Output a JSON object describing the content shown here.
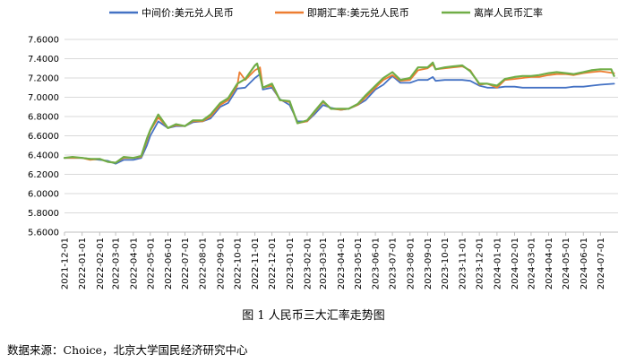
{
  "chart_data": {
    "type": "line",
    "title": "",
    "xlabel": "",
    "ylabel": "",
    "ylim": [
      5.6,
      7.6
    ],
    "yticks": [
      "5.6000",
      "5.8000",
      "6.0000",
      "6.2000",
      "6.4000",
      "6.6000",
      "6.8000",
      "7.0000",
      "7.2000",
      "7.4000",
      "7.6000"
    ],
    "x_ticks": [
      "2021-12-01",
      "2022-01-01",
      "2022-02-01",
      "2022-03-01",
      "2022-04-01",
      "2022-05-01",
      "2022-06-01",
      "2022-07-01",
      "2022-08-01",
      "2022-09-01",
      "2022-10-01",
      "2022-11-01",
      "2022-12-01",
      "2023-01-01",
      "2023-02-01",
      "2023-03-01",
      "2023-04-01",
      "2023-05-01",
      "2023-06-01",
      "2023-07-01",
      "2023-08-01",
      "2023-09-01",
      "2023-10-01",
      "2023-11-01",
      "2023-12-01",
      "2024-01-01",
      "2024-02-01",
      "2024-03-01",
      "2024-04-01",
      "2024-05-01",
      "2024-06-01",
      "2024-07-01"
    ],
    "grid": "horizontal",
    "legend_position": "top",
    "series": [
      {
        "name": "中间价:美元兑人民币",
        "color": "#4472c4",
        "points": [
          [
            "2021-12-01",
            6.37
          ],
          [
            "2021-12-15",
            6.37
          ],
          [
            "2022-01-01",
            6.37
          ],
          [
            "2022-01-15",
            6.36
          ],
          [
            "2022-02-01",
            6.35
          ],
          [
            "2022-02-15",
            6.34
          ],
          [
            "2022-03-01",
            6.31
          ],
          [
            "2022-03-15",
            6.35
          ],
          [
            "2022-04-01",
            6.35
          ],
          [
            "2022-04-15",
            6.37
          ],
          [
            "2022-04-25",
            6.5
          ],
          [
            "2022-05-01",
            6.6
          ],
          [
            "2022-05-15",
            6.75
          ],
          [
            "2022-06-01",
            6.68
          ],
          [
            "2022-06-15",
            6.7
          ],
          [
            "2022-07-01",
            6.7
          ],
          [
            "2022-07-15",
            6.74
          ],
          [
            "2022-08-01",
            6.75
          ],
          [
            "2022-08-15",
            6.78
          ],
          [
            "2022-09-01",
            6.9
          ],
          [
            "2022-09-15",
            6.94
          ],
          [
            "2022-10-01",
            7.09
          ],
          [
            "2022-10-15",
            7.1
          ],
          [
            "2022-11-01",
            7.2
          ],
          [
            "2022-11-10",
            7.24
          ],
          [
            "2022-11-15",
            7.08
          ],
          [
            "2022-12-01",
            7.1
          ],
          [
            "2022-12-15",
            6.98
          ],
          [
            "2023-01-01",
            6.92
          ],
          [
            "2023-01-15",
            6.75
          ],
          [
            "2023-02-01",
            6.75
          ],
          [
            "2023-02-15",
            6.83
          ],
          [
            "2023-03-01",
            6.92
          ],
          [
            "2023-03-15",
            6.89
          ],
          [
            "2023-04-01",
            6.87
          ],
          [
            "2023-04-15",
            6.88
          ],
          [
            "2023-05-01",
            6.92
          ],
          [
            "2023-05-15",
            6.97
          ],
          [
            "2023-06-01",
            7.08
          ],
          [
            "2023-06-15",
            7.13
          ],
          [
            "2023-07-01",
            7.22
          ],
          [
            "2023-07-15",
            7.15
          ],
          [
            "2023-08-01",
            7.15
          ],
          [
            "2023-08-15",
            7.18
          ],
          [
            "2023-09-01",
            7.18
          ],
          [
            "2023-09-10",
            7.21
          ],
          [
            "2023-09-15",
            7.17
          ],
          [
            "2023-10-01",
            7.18
          ],
          [
            "2023-10-15",
            7.18
          ],
          [
            "2023-11-01",
            7.18
          ],
          [
            "2023-11-15",
            7.17
          ],
          [
            "2023-12-01",
            7.12
          ],
          [
            "2023-12-15",
            7.1
          ],
          [
            "2024-01-01",
            7.1
          ],
          [
            "2024-01-15",
            7.11
          ],
          [
            "2024-02-01",
            7.11
          ],
          [
            "2024-02-15",
            7.1
          ],
          [
            "2024-03-01",
            7.1
          ],
          [
            "2024-03-15",
            7.1
          ],
          [
            "2024-04-01",
            7.1
          ],
          [
            "2024-04-15",
            7.1
          ],
          [
            "2024-05-01",
            7.1
          ],
          [
            "2024-05-15",
            7.11
          ],
          [
            "2024-06-01",
            7.11
          ],
          [
            "2024-06-15",
            7.12
          ],
          [
            "2024-07-01",
            7.13
          ],
          [
            "2024-07-25",
            7.14
          ]
        ]
      },
      {
        "name": "即期汇率:美元兑人民币",
        "color": "#ed7d31",
        "points": [
          [
            "2021-12-01",
            6.37
          ],
          [
            "2021-12-15",
            6.37
          ],
          [
            "2022-01-01",
            6.37
          ],
          [
            "2022-01-15",
            6.35
          ],
          [
            "2022-02-01",
            6.36
          ],
          [
            "2022-02-15",
            6.33
          ],
          [
            "2022-03-01",
            6.32
          ],
          [
            "2022-03-15",
            6.37
          ],
          [
            "2022-04-01",
            6.37
          ],
          [
            "2022-04-15",
            6.38
          ],
          [
            "2022-04-25",
            6.55
          ],
          [
            "2022-05-01",
            6.65
          ],
          [
            "2022-05-15",
            6.79
          ],
          [
            "2022-06-01",
            6.68
          ],
          [
            "2022-06-15",
            6.71
          ],
          [
            "2022-07-01",
            6.7
          ],
          [
            "2022-07-15",
            6.75
          ],
          [
            "2022-08-01",
            6.75
          ],
          [
            "2022-08-15",
            6.8
          ],
          [
            "2022-09-01",
            6.92
          ],
          [
            "2022-09-15",
            6.97
          ],
          [
            "2022-10-01",
            7.12
          ],
          [
            "2022-10-05",
            7.26
          ],
          [
            "2022-10-15",
            7.18
          ],
          [
            "2022-11-01",
            7.28
          ],
          [
            "2022-11-10",
            7.31
          ],
          [
            "2022-11-15",
            7.1
          ],
          [
            "2022-12-01",
            7.12
          ],
          [
            "2022-12-15",
            6.97
          ],
          [
            "2023-01-01",
            6.95
          ],
          [
            "2023-01-15",
            6.73
          ],
          [
            "2023-02-01",
            6.75
          ],
          [
            "2023-02-15",
            6.85
          ],
          [
            "2023-03-01",
            6.95
          ],
          [
            "2023-03-15",
            6.88
          ],
          [
            "2023-04-01",
            6.87
          ],
          [
            "2023-04-15",
            6.88
          ],
          [
            "2023-05-01",
            6.92
          ],
          [
            "2023-05-15",
            7.0
          ],
          [
            "2023-06-01",
            7.1
          ],
          [
            "2023-06-15",
            7.18
          ],
          [
            "2023-07-01",
            7.23
          ],
          [
            "2023-07-15",
            7.17
          ],
          [
            "2023-08-01",
            7.18
          ],
          [
            "2023-08-15",
            7.28
          ],
          [
            "2023-09-01",
            7.3
          ],
          [
            "2023-09-10",
            7.34
          ],
          [
            "2023-09-15",
            7.29
          ],
          [
            "2023-10-01",
            7.3
          ],
          [
            "2023-10-15",
            7.31
          ],
          [
            "2023-11-01",
            7.32
          ],
          [
            "2023-11-15",
            7.28
          ],
          [
            "2023-12-01",
            7.13
          ],
          [
            "2023-12-15",
            7.14
          ],
          [
            "2024-01-01",
            7.1
          ],
          [
            "2024-01-15",
            7.18
          ],
          [
            "2024-02-01",
            7.19
          ],
          [
            "2024-02-15",
            7.2
          ],
          [
            "2024-03-01",
            7.21
          ],
          [
            "2024-03-15",
            7.21
          ],
          [
            "2024-04-01",
            7.23
          ],
          [
            "2024-04-15",
            7.24
          ],
          [
            "2024-05-01",
            7.24
          ],
          [
            "2024-05-15",
            7.23
          ],
          [
            "2024-06-01",
            7.25
          ],
          [
            "2024-06-15",
            7.26
          ],
          [
            "2024-07-01",
            7.27
          ],
          [
            "2024-07-25",
            7.25
          ]
        ]
      },
      {
        "name": "离岸人民币汇率",
        "color": "#70ad47",
        "points": [
          [
            "2021-12-01",
            6.37
          ],
          [
            "2021-12-15",
            6.38
          ],
          [
            "2022-01-01",
            6.37
          ],
          [
            "2022-01-15",
            6.36
          ],
          [
            "2022-02-01",
            6.36
          ],
          [
            "2022-02-15",
            6.33
          ],
          [
            "2022-03-01",
            6.32
          ],
          [
            "2022-03-15",
            6.38
          ],
          [
            "2022-04-01",
            6.37
          ],
          [
            "2022-04-15",
            6.39
          ],
          [
            "2022-04-25",
            6.57
          ],
          [
            "2022-05-01",
            6.66
          ],
          [
            "2022-05-15",
            6.82
          ],
          [
            "2022-06-01",
            6.68
          ],
          [
            "2022-06-15",
            6.72
          ],
          [
            "2022-07-01",
            6.7
          ],
          [
            "2022-07-15",
            6.76
          ],
          [
            "2022-08-01",
            6.76
          ],
          [
            "2022-08-15",
            6.82
          ],
          [
            "2022-09-01",
            6.94
          ],
          [
            "2022-09-15",
            6.99
          ],
          [
            "2022-10-01",
            7.14
          ],
          [
            "2022-10-15",
            7.19
          ],
          [
            "2022-11-01",
            7.33
          ],
          [
            "2022-11-05",
            7.35
          ],
          [
            "2022-11-15",
            7.1
          ],
          [
            "2022-12-01",
            7.14
          ],
          [
            "2022-12-15",
            6.97
          ],
          [
            "2023-01-01",
            6.96
          ],
          [
            "2023-01-15",
            6.73
          ],
          [
            "2023-02-01",
            6.76
          ],
          [
            "2023-02-15",
            6.86
          ],
          [
            "2023-03-01",
            6.96
          ],
          [
            "2023-03-15",
            6.88
          ],
          [
            "2023-04-01",
            6.88
          ],
          [
            "2023-04-15",
            6.88
          ],
          [
            "2023-05-01",
            6.93
          ],
          [
            "2023-05-15",
            7.02
          ],
          [
            "2023-06-01",
            7.12
          ],
          [
            "2023-06-15",
            7.2
          ],
          [
            "2023-07-01",
            7.26
          ],
          [
            "2023-07-15",
            7.18
          ],
          [
            "2023-08-01",
            7.2
          ],
          [
            "2023-08-15",
            7.31
          ],
          [
            "2023-09-01",
            7.31
          ],
          [
            "2023-09-10",
            7.36
          ],
          [
            "2023-09-15",
            7.29
          ],
          [
            "2023-10-01",
            7.31
          ],
          [
            "2023-10-15",
            7.32
          ],
          [
            "2023-11-01",
            7.33
          ],
          [
            "2023-11-15",
            7.27
          ],
          [
            "2023-12-01",
            7.14
          ],
          [
            "2023-12-15",
            7.14
          ],
          [
            "2024-01-01",
            7.12
          ],
          [
            "2024-01-15",
            7.19
          ],
          [
            "2024-02-01",
            7.21
          ],
          [
            "2024-02-15",
            7.22
          ],
          [
            "2024-03-01",
            7.22
          ],
          [
            "2024-03-15",
            7.23
          ],
          [
            "2024-04-01",
            7.25
          ],
          [
            "2024-04-15",
            7.26
          ],
          [
            "2024-05-01",
            7.25
          ],
          [
            "2024-05-15",
            7.24
          ],
          [
            "2024-06-01",
            7.26
          ],
          [
            "2024-06-15",
            7.28
          ],
          [
            "2024-07-01",
            7.29
          ],
          [
            "2024-07-20",
            7.29
          ],
          [
            "2024-07-25",
            7.22
          ]
        ]
      }
    ]
  },
  "caption": "图 1 人民币三大汇率走势图",
  "source": "数据来源：Choice，北京大学国民经济研究中心"
}
